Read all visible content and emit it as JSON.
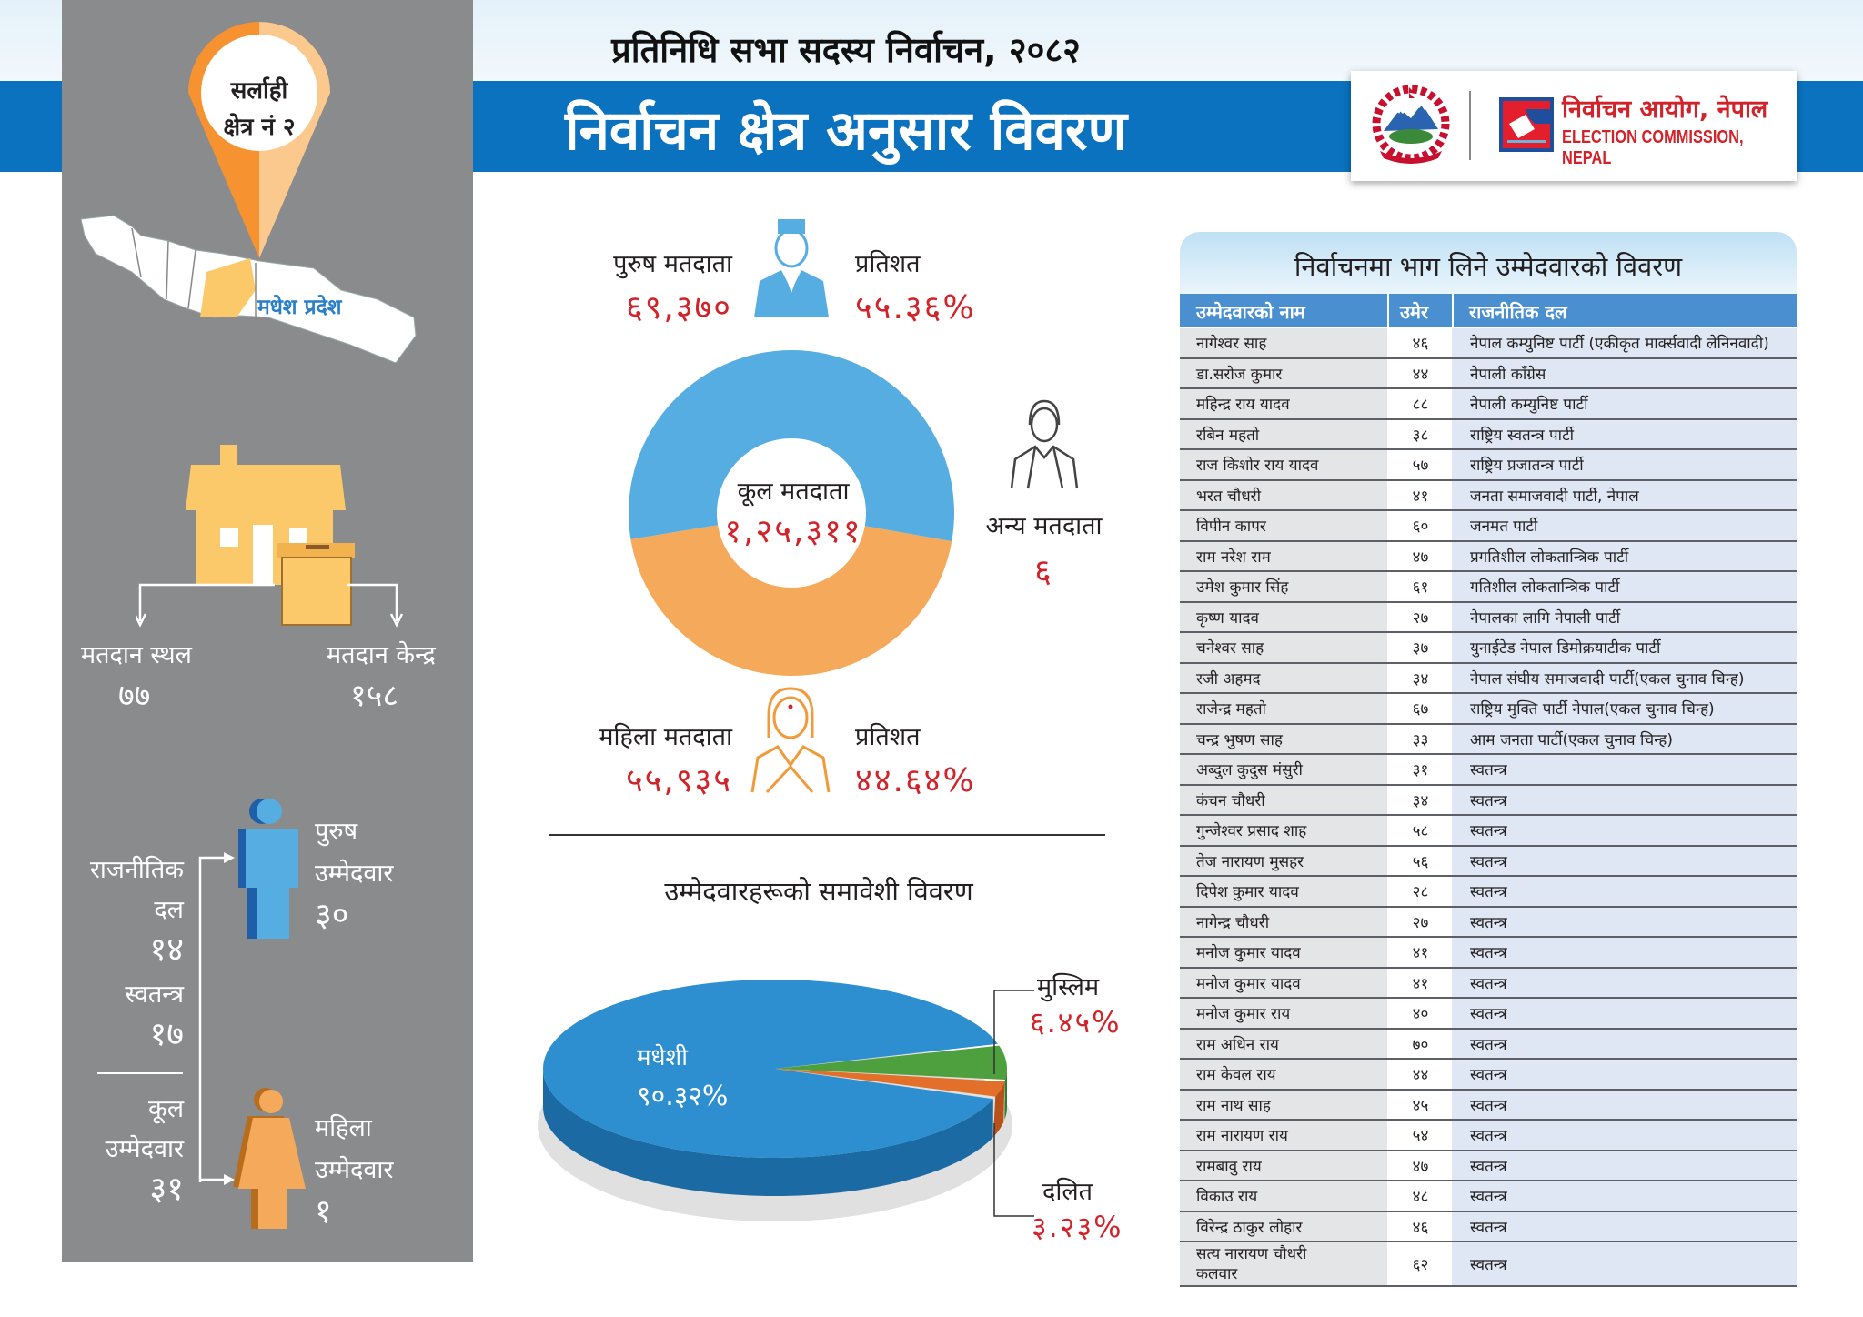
{
  "header": {
    "subtitle": "प्रतिनिधि सभा सदस्य निर्वाचन, २०८२",
    "title": "निर्वाचन क्षेत्र अनुसार विवरण",
    "logo_text_np": "निर्वाचन आयोग, नेपाल",
    "logo_text_en": "ELECTION COMMISSION, NEPAL"
  },
  "constituency": {
    "pin_line1": "सर्लाही",
    "pin_line2": "क्षेत्र नं २",
    "province": "मधेश प्रदेश"
  },
  "polling": {
    "stations_label": "मतदान स्थल",
    "stations_value": "७७",
    "centres_label": "मतदान केन्द्र",
    "centres_value": "१५८"
  },
  "candidates_summary": {
    "party_label_1": "राजनीतिक",
    "party_label_2": "दल",
    "party_value": "१४",
    "independent_label": "स्वतन्त्र",
    "independent_value": "१७",
    "total_label_1": "कूल",
    "total_label_2": "उम्मेदवार",
    "total_value": "३१",
    "male_label_1": "पुरुष",
    "male_label_2": "उम्मेदवार",
    "male_value": "३०",
    "female_label_1": "महिला",
    "female_label_2": "उम्मेदवार",
    "female_value": "१"
  },
  "voters": {
    "male_label": "पुरुष मतदाता",
    "male_value": "६९,३७०",
    "male_pct_label": "प्रतिशत",
    "male_pct": "५५.३६%",
    "female_label": "महिला मतदाता",
    "female_value": "५५,९३५",
    "female_pct_label": "प्रतिशत",
    "female_pct": "४४.६४%",
    "other_label": "अन्य मतदाता",
    "other_value": "६",
    "total_label": "कूल मतदाता",
    "total_value": "१,२५,३११",
    "colors": {
      "male": "#56ade2",
      "female": "#f5a95a"
    }
  },
  "chart_data": [
    {
      "type": "pie",
      "variant": "donut",
      "categories": [
        "पुरुष मतदाता",
        "महिला मतदाता"
      ],
      "values": [
        55.36,
        44.64
      ],
      "colors": [
        "#56ade2",
        "#f5a95a"
      ]
    },
    {
      "type": "pie",
      "variant": "3d",
      "title": "उम्मेदवारहरूको समावेशी विवरण",
      "categories": [
        "मधेशी",
        "मुस्लिम",
        "दलित"
      ],
      "values": [
        90.32,
        6.45,
        3.23
      ],
      "labels": [
        "९०.३२%",
        "६.४५%",
        "३.२३%"
      ],
      "colors": [
        "#2d8fd0",
        "#4e9f3d",
        "#e2702b"
      ]
    }
  ],
  "table": {
    "title": "निर्वाचनमा भाग लिने उम्मेदवारको विवरण",
    "columns": [
      "उम्मेदवारको नाम",
      "उमेर",
      "राजनीतिक दल"
    ],
    "rows": [
      [
        "नागेश्वर साह",
        "४६",
        "नेपाल कम्युनिष्ट पार्टी (एकीकृत मार्क्सवादी लेनिनवादी)"
      ],
      [
        "डा.सरोज कुमार",
        "४४",
        "नेपाली काँग्रेस"
      ],
      [
        "महिन्द्र राय यादव",
        "८८",
        "नेपाली कम्युनिष्ट पार्टी"
      ],
      [
        "रबिन महतो",
        "३८",
        "राष्ट्रिय स्वतन्त्र पार्टी"
      ],
      [
        "राज किशोर राय यादव",
        "५७",
        "राष्ट्रिय प्रजातन्त्र पार्टी"
      ],
      [
        "भरत चौधरी",
        "४१",
        "जनता समाजवादी पार्टी, नेपाल"
      ],
      [
        "विपीन कापर",
        "६०",
        "जनमत पार्टी"
      ],
      [
        "राम नरेश राम",
        "४७",
        "प्रगतिशील लोकतान्त्रिक पार्टी"
      ],
      [
        "उमेश कुमार सिंह",
        "६१",
        "गतिशील लोकतान्त्रिक पार्टी"
      ],
      [
        "कृष्ण यादव",
        "२७",
        "नेपालका लागि नेपाली पार्टी"
      ],
      [
        "चनेश्वर साह",
        "३७",
        "युनाईटेड नेपाल डिमोक्रयाटीक पार्टी"
      ],
      [
        "रजी अहमद",
        "३४",
        "नेपाल संघीय समाजवादी पार्टी(एकल चुनाव चिन्ह)"
      ],
      [
        "राजेन्द्र महतो",
        "६७",
        "राष्ट्रिय मुक्ति पार्टी नेपाल(एकल चुनाव चिन्ह)"
      ],
      [
        "चन्द्र भुषण साह",
        "३३",
        "आम जनता पार्टी(एकल चुनाव चिन्ह)"
      ],
      [
        "अब्दुल कुदुस मंसुरी",
        "३१",
        "स्वतन्त्र"
      ],
      [
        "कंचन चौधरी",
        "३४",
        "स्वतन्त्र"
      ],
      [
        "गुन्जेश्वर प्रसाद शाह",
        "५८",
        "स्वतन्त्र"
      ],
      [
        "तेज नारायण मुसहर",
        "५६",
        "स्वतन्त्र"
      ],
      [
        "दिपेश कुमार यादव",
        "२८",
        "स्वतन्त्र"
      ],
      [
        "नागेन्द्र चौधरी",
        "२७",
        "स्वतन्त्र"
      ],
      [
        "मनोज कुमार यादव",
        "४१",
        "स्वतन्त्र"
      ],
      [
        "मनोज कुमार यादव",
        "४१",
        "स्वतन्त्र"
      ],
      [
        "मनोज कुमार राय",
        "४०",
        "स्वतन्त्र"
      ],
      [
        "राम अधिन राय",
        "७०",
        "स्वतन्त्र"
      ],
      [
        "राम केवल राय",
        "४४",
        "स्वतन्त्र"
      ],
      [
        "राम नाथ साह",
        "४५",
        "स्वतन्त्र"
      ],
      [
        "राम नारायण राय",
        "५४",
        "स्वतन्त्र"
      ],
      [
        "रामबावु राय",
        "४७",
        "स्वतन्त्र"
      ],
      [
        "विकाउ राय",
        "४८",
        "स्वतन्त्र"
      ],
      [
        "विरेन्द्र ठाकुर लोहार",
        "४६",
        "स्वतन्त्र"
      ],
      [
        "सत्य नारायण चौधरी कलवार",
        "६२",
        "स्वतन्त्र"
      ]
    ]
  }
}
